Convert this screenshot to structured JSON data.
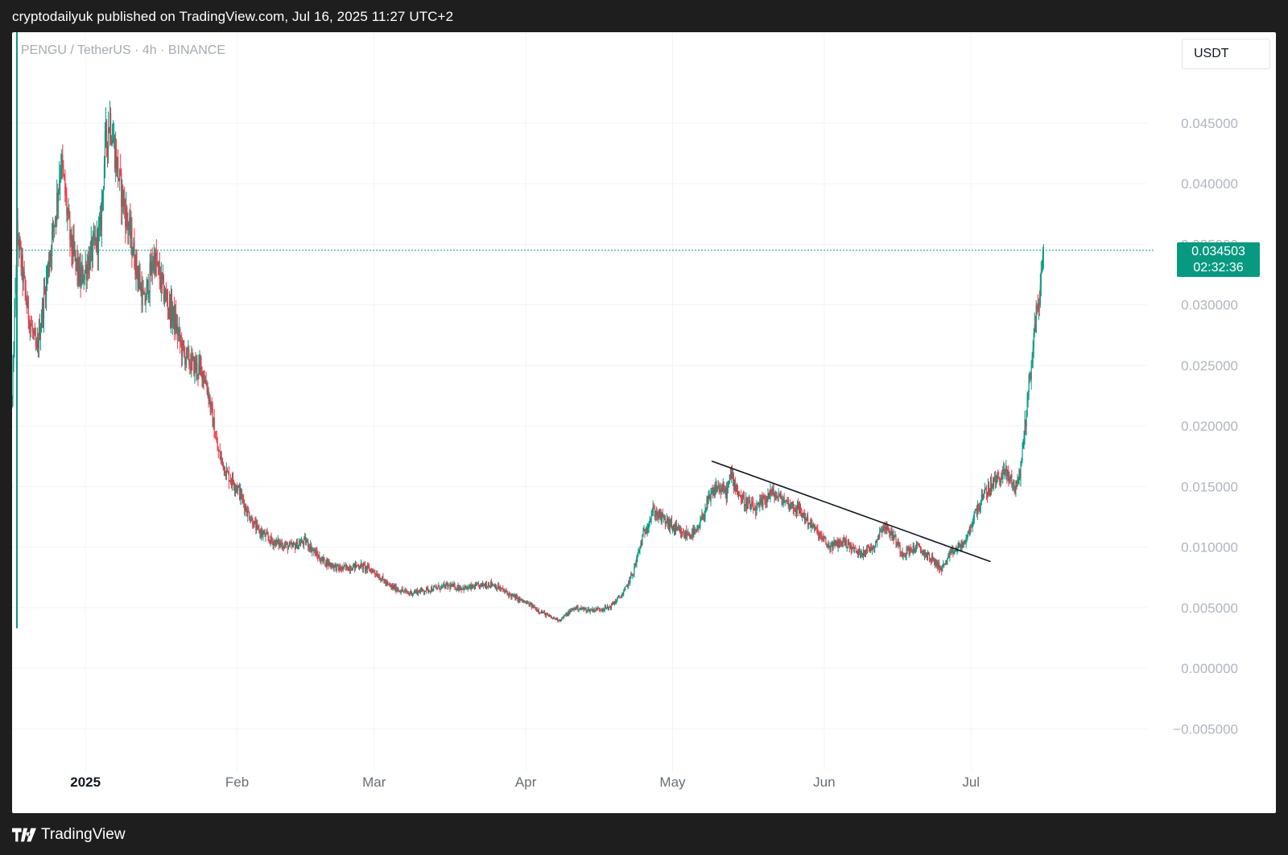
{
  "header": {
    "published": "cryptodailyuk published on TradingView.com, Jul 16, 2025 11:27 UTC+2"
  },
  "footer": {
    "brand": "TradingView",
    "logo_icon": "tradingview-logo-icon"
  },
  "toolbar": {
    "currency": "USDT"
  },
  "price_label": {
    "price": "0.034503",
    "countdown": "02:32:36"
  },
  "colors": {
    "up": "#089981",
    "down": "#f23645",
    "grid": "#f0f3fa",
    "axis_text": "#b2b5be",
    "tag": "#089981"
  },
  "chart_data": {
    "type": "candlestick",
    "symbol": "PENGU / TetherUS · 4h · BINANCE",
    "interval": "4h",
    "y_axis": {
      "ylim": [
        -0.0085,
        0.0525
      ],
      "ticks": [
        -0.005,
        0.0,
        0.005,
        0.01,
        0.015,
        0.02,
        0.025,
        0.03,
        0.035,
        0.04,
        0.045
      ],
      "tick_labels": [
        "−0.005000",
        "0.000000",
        "0.005000",
        "0.010000",
        "0.015000",
        "0.020000",
        "0.025000",
        "0.030000",
        "0.035000",
        "0.040000",
        "0.045000"
      ]
    },
    "x_axis": {
      "xlim": [
        "2024-12-17",
        "2025-08-06"
      ],
      "ticks": [
        {
          "date": "2025-01-01",
          "label": "2025",
          "bold": true
        },
        {
          "date": "2025-02-01",
          "label": "Feb"
        },
        {
          "date": "2025-03-01",
          "label": "Mar"
        },
        {
          "date": "2025-04-01",
          "label": "Apr"
        },
        {
          "date": "2025-05-01",
          "label": "May"
        },
        {
          "date": "2025-06-01",
          "label": "Jun"
        },
        {
          "date": "2025-07-01",
          "label": "Jul"
        }
      ]
    },
    "last_price": 0.034503,
    "price_line": 0.034503,
    "trendline": {
      "start": {
        "date": "2025-05-09",
        "value": 0.0171
      },
      "end": {
        "date": "2025-07-05",
        "value": 0.0088
      }
    },
    "price_path": [
      [
        "2024-12-17",
        0.022
      ],
      [
        "2024-12-18",
        0.036
      ],
      [
        "2024-12-20",
        0.03
      ],
      [
        "2024-12-22",
        0.026
      ],
      [
        "2024-12-24",
        0.032
      ],
      [
        "2024-12-26",
        0.038
      ],
      [
        "2024-12-27",
        0.042
      ],
      [
        "2024-12-29",
        0.035
      ],
      [
        "2024-12-31",
        0.032
      ],
      [
        "2025-01-02",
        0.034
      ],
      [
        "2025-01-04",
        0.036
      ],
      [
        "2025-01-05",
        0.043
      ],
      [
        "2025-01-06",
        0.0455
      ],
      [
        "2025-01-08",
        0.04
      ],
      [
        "2025-01-10",
        0.036
      ],
      [
        "2025-01-12",
        0.032
      ],
      [
        "2025-01-13",
        0.03
      ],
      [
        "2025-01-15",
        0.034
      ],
      [
        "2025-01-17",
        0.031
      ],
      [
        "2025-01-19",
        0.029
      ],
      [
        "2025-01-21",
        0.026
      ],
      [
        "2025-01-23",
        0.025
      ],
      [
        "2025-01-25",
        0.0245
      ],
      [
        "2025-01-26",
        0.023
      ],
      [
        "2025-01-28",
        0.018
      ],
      [
        "2025-01-30",
        0.016
      ],
      [
        "2025-02-01",
        0.015
      ],
      [
        "2025-02-03",
        0.013
      ],
      [
        "2025-02-05",
        0.0115
      ],
      [
        "2025-02-08",
        0.0105
      ],
      [
        "2025-02-12",
        0.01
      ],
      [
        "2025-02-15",
        0.0105
      ],
      [
        "2025-02-18",
        0.009
      ],
      [
        "2025-02-22",
        0.0082
      ],
      [
        "2025-02-26",
        0.0085
      ],
      [
        "2025-03-01",
        0.008
      ],
      [
        "2025-03-04",
        0.0068
      ],
      [
        "2025-03-08",
        0.0062
      ],
      [
        "2025-03-12",
        0.0065
      ],
      [
        "2025-03-16",
        0.0068
      ],
      [
        "2025-03-20",
        0.0066
      ],
      [
        "2025-03-25",
        0.007
      ],
      [
        "2025-03-29",
        0.006
      ],
      [
        "2025-04-02",
        0.0052
      ],
      [
        "2025-04-06",
        0.0042
      ],
      [
        "2025-04-08",
        0.004
      ],
      [
        "2025-04-11",
        0.005
      ],
      [
        "2025-04-14",
        0.0048
      ],
      [
        "2025-04-18",
        0.005
      ],
      [
        "2025-04-21",
        0.0062
      ],
      [
        "2025-04-23",
        0.008
      ],
      [
        "2025-04-25",
        0.011
      ],
      [
        "2025-04-27",
        0.013
      ],
      [
        "2025-04-30",
        0.012
      ],
      [
        "2025-05-03",
        0.011
      ],
      [
        "2025-05-06",
        0.0112
      ],
      [
        "2025-05-08",
        0.0135
      ],
      [
        "2025-05-10",
        0.015
      ],
      [
        "2025-05-12",
        0.0145
      ],
      [
        "2025-05-13",
        0.016
      ],
      [
        "2025-05-15",
        0.014
      ],
      [
        "2025-05-18",
        0.013
      ],
      [
        "2025-05-21",
        0.0145
      ],
      [
        "2025-05-24",
        0.0138
      ],
      [
        "2025-05-27",
        0.013
      ],
      [
        "2025-05-30",
        0.0115
      ],
      [
        "2025-06-02",
        0.01
      ],
      [
        "2025-06-05",
        0.0105
      ],
      [
        "2025-06-08",
        0.0095
      ],
      [
        "2025-06-11",
        0.01
      ],
      [
        "2025-06-13",
        0.0118
      ],
      [
        "2025-06-15",
        0.011
      ],
      [
        "2025-06-17",
        0.0095
      ],
      [
        "2025-06-20",
        0.01
      ],
      [
        "2025-06-23",
        0.009
      ],
      [
        "2025-06-25",
        0.0082
      ],
      [
        "2025-06-27",
        0.0095
      ],
      [
        "2025-06-30",
        0.0105
      ],
      [
        "2025-07-02",
        0.013
      ],
      [
        "2025-07-04",
        0.0145
      ],
      [
        "2025-07-06",
        0.0155
      ],
      [
        "2025-07-08",
        0.0162
      ],
      [
        "2025-07-10",
        0.015
      ],
      [
        "2025-07-11",
        0.016
      ],
      [
        "2025-07-12",
        0.02
      ],
      [
        "2025-07-13",
        0.024
      ],
      [
        "2025-07-14",
        0.028
      ],
      [
        "2025-07-15",
        0.031
      ],
      [
        "2025-07-16",
        0.0345
      ]
    ]
  }
}
